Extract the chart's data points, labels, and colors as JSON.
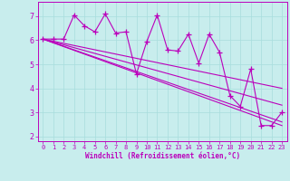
{
  "xlabel": "Windchill (Refroidissement éolien,°C)",
  "xlim": [
    -0.5,
    23.5
  ],
  "ylim": [
    1.8,
    7.6
  ],
  "xticks": [
    0,
    1,
    2,
    3,
    4,
    5,
    6,
    7,
    8,
    9,
    10,
    11,
    12,
    13,
    14,
    15,
    16,
    17,
    18,
    19,
    20,
    21,
    22,
    23
  ],
  "yticks": [
    2,
    3,
    4,
    5,
    6,
    7
  ],
  "bg_color": "#c8eded",
  "line_color": "#bb00bb",
  "grid_color": "#a8dddd",
  "data_x": [
    0,
    1,
    2,
    3,
    4,
    5,
    6,
    7,
    8,
    9,
    10,
    11,
    12,
    13,
    14,
    15,
    16,
    17,
    18,
    19,
    20,
    21,
    22,
    23
  ],
  "data_y": [
    6.05,
    6.05,
    6.05,
    7.05,
    6.6,
    6.35,
    7.1,
    6.3,
    6.35,
    4.6,
    5.95,
    7.05,
    5.6,
    5.55,
    6.25,
    5.05,
    6.25,
    5.5,
    3.7,
    3.25,
    4.8,
    2.45,
    2.45,
    3.0
  ],
  "reg_lines": [
    [
      [
        0,
        23
      ],
      [
        6.05,
        4.0
      ]
    ],
    [
      [
        0,
        23
      ],
      [
        6.05,
        3.3
      ]
    ],
    [
      [
        0,
        23
      ],
      [
        6.05,
        2.6
      ]
    ],
    [
      [
        0,
        23
      ],
      [
        6.05,
        2.45
      ]
    ]
  ]
}
